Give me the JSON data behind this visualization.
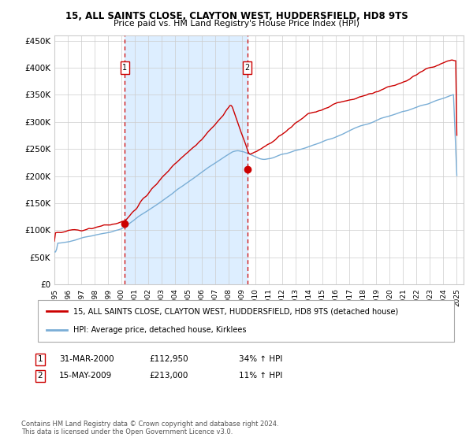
{
  "title1": "15, ALL SAINTS CLOSE, CLAYTON WEST, HUDDERSFIELD, HD8 9TS",
  "title2": "Price paid vs. HM Land Registry's House Price Index (HPI)",
  "legend_line1": "15, ALL SAINTS CLOSE, CLAYTON WEST, HUDDERSFIELD, HD8 9TS (detached house)",
  "legend_line2": "HPI: Average price, detached house, Kirklees",
  "sale1_date": "31-MAR-2000",
  "sale1_price": 112950,
  "sale1_hpi": "34% ↑ HPI",
  "sale2_date": "15-MAY-2009",
  "sale2_price": 213000,
  "sale2_hpi": "11% ↑ HPI",
  "footer": "Contains HM Land Registry data © Crown copyright and database right 2024.\nThis data is licensed under the Open Government Licence v3.0.",
  "red_color": "#cc0000",
  "blue_color": "#7aaed6",
  "bg_shading": "#ddeeff",
  "grid_color": "#cccccc",
  "ymin": 0,
  "ymax": 460000,
  "start_year": 1995,
  "end_year": 2025,
  "sale1_year": 2000.25,
  "sale2_year": 2009.37
}
